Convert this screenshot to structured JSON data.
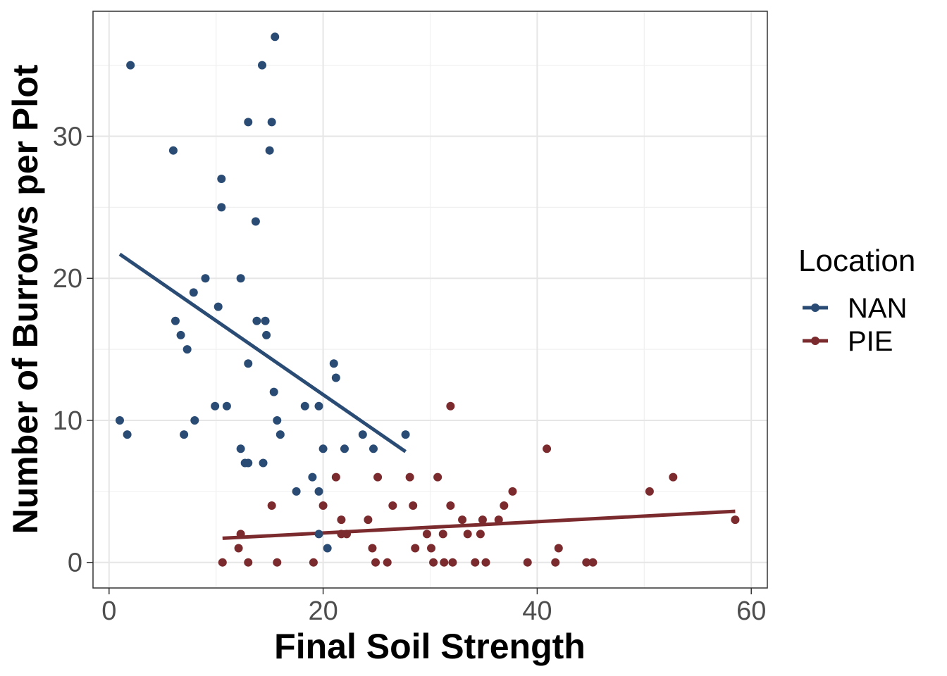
{
  "chart_data": {
    "type": "scatter",
    "xlabel": "Final Soil Strength",
    "ylabel": "Number of Burrows per Plot",
    "xlim": [
      -1.5,
      61.5
    ],
    "ylim": [
      -1.8,
      38.8
    ],
    "x_ticks": [
      0,
      20,
      40,
      60
    ],
    "y_ticks": [
      0,
      10,
      20,
      30
    ],
    "grid": true,
    "legend_position": "right",
    "legend_title": "Location",
    "series": [
      {
        "name": "NAN",
        "color": "#2a4c74",
        "points": [
          [
            1.0,
            10
          ],
          [
            1.7,
            9
          ],
          [
            2.0,
            35
          ],
          [
            6.0,
            29
          ],
          [
            6.2,
            17
          ],
          [
            6.7,
            16
          ],
          [
            7.0,
            9
          ],
          [
            7.3,
            15
          ],
          [
            7.9,
            19
          ],
          [
            8.0,
            10
          ],
          [
            9.0,
            20
          ],
          [
            9.9,
            11
          ],
          [
            10.2,
            18
          ],
          [
            10.5,
            27
          ],
          [
            10.5,
            25
          ],
          [
            11.0,
            11
          ],
          [
            12.3,
            20
          ],
          [
            12.3,
            8
          ],
          [
            12.7,
            7
          ],
          [
            13.0,
            31
          ],
          [
            13.0,
            14
          ],
          [
            13.0,
            7
          ],
          [
            13.7,
            24
          ],
          [
            13.8,
            17
          ],
          [
            14.3,
            35
          ],
          [
            14.4,
            7
          ],
          [
            14.6,
            17
          ],
          [
            14.7,
            16
          ],
          [
            15.0,
            29
          ],
          [
            15.2,
            31
          ],
          [
            15.4,
            12
          ],
          [
            15.5,
            37
          ],
          [
            15.7,
            10
          ],
          [
            16.0,
            9
          ],
          [
            17.5,
            5
          ],
          [
            18.3,
            11
          ],
          [
            19.0,
            6
          ],
          [
            19.6,
            5
          ],
          [
            19.6,
            2
          ],
          [
            19.6,
            11
          ],
          [
            20.0,
            8
          ],
          [
            20.4,
            1
          ],
          [
            21.0,
            14
          ],
          [
            21.2,
            13
          ],
          [
            22.0,
            8
          ],
          [
            23.7,
            9
          ],
          [
            24.7,
            8
          ],
          [
            27.7,
            9
          ]
        ],
        "fit": [
          [
            1.0,
            21.7
          ],
          [
            27.7,
            7.8
          ]
        ]
      },
      {
        "name": "PIE",
        "color": "#7b2b2e",
        "points": [
          [
            10.6,
            0
          ],
          [
            12.1,
            1
          ],
          [
            12.3,
            2
          ],
          [
            13.0,
            0
          ],
          [
            15.2,
            4
          ],
          [
            15.7,
            0
          ],
          [
            19.1,
            0
          ],
          [
            20.0,
            4
          ],
          [
            21.2,
            6
          ],
          [
            21.7,
            3
          ],
          [
            21.7,
            2
          ],
          [
            22.2,
            2
          ],
          [
            24.2,
            3
          ],
          [
            24.6,
            1
          ],
          [
            24.9,
            0
          ],
          [
            25.1,
            6
          ],
          [
            26.0,
            0
          ],
          [
            26.5,
            4
          ],
          [
            28.1,
            6
          ],
          [
            28.4,
            4
          ],
          [
            28.6,
            1
          ],
          [
            29.7,
            2
          ],
          [
            30.1,
            1
          ],
          [
            30.3,
            0
          ],
          [
            30.7,
            6
          ],
          [
            31.2,
            2
          ],
          [
            31.3,
            0
          ],
          [
            31.9,
            4
          ],
          [
            31.9,
            11
          ],
          [
            32.1,
            0
          ],
          [
            33.0,
            3
          ],
          [
            33.5,
            2
          ],
          [
            34.2,
            0
          ],
          [
            34.7,
            2
          ],
          [
            34.9,
            3
          ],
          [
            35.2,
            0
          ],
          [
            36.4,
            3
          ],
          [
            36.9,
            4
          ],
          [
            37.7,
            5
          ],
          [
            39.1,
            0
          ],
          [
            40.9,
            8
          ],
          [
            41.7,
            0
          ],
          [
            42.0,
            1
          ],
          [
            44.6,
            0
          ],
          [
            45.2,
            0
          ],
          [
            50.5,
            5
          ],
          [
            52.7,
            6
          ],
          [
            58.5,
            3
          ]
        ],
        "fit": [
          [
            10.6,
            1.7
          ],
          [
            58.5,
            3.6
          ]
        ]
      }
    ]
  }
}
